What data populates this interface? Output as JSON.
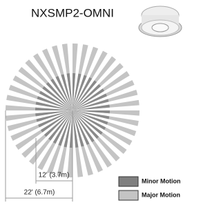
{
  "title": "NXSMP2-OMNI",
  "dimensions": [
    "12' (3.7m)",
    "22' (6.7m)"
  ],
  "legend": [
    "Minor Motion",
    "Major Motion"
  ]
}
